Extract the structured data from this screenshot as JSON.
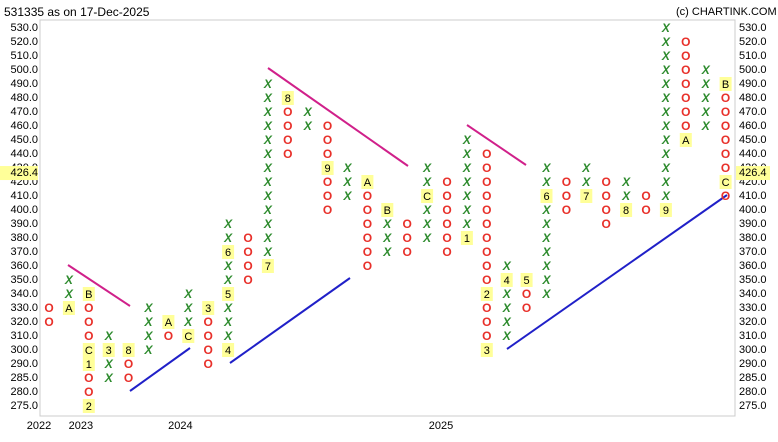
{
  "chart_data": {
    "type": "pnf",
    "title": "531335 as on 17-Dec-2025",
    "watermark": "(c) CHARTINK.COM",
    "last_price": 426.4,
    "x_color": "#2e8b2e",
    "o_color": "#e8302a",
    "marker_color": "#ffff99",
    "yticks": [
      {
        "value": 530,
        "label": "530.0"
      },
      {
        "value": 520,
        "label": "520.0"
      },
      {
        "value": 510,
        "label": "510.0"
      },
      {
        "value": 500,
        "label": "500.0"
      },
      {
        "value": 490,
        "label": "490.0"
      },
      {
        "value": 480,
        "label": "480.0"
      },
      {
        "value": 470,
        "label": "470.0"
      },
      {
        "value": 460,
        "label": "460.0"
      },
      {
        "value": 450,
        "label": "450.0"
      },
      {
        "value": 440,
        "label": "440.0"
      },
      {
        "value": 430,
        "label": "430.0"
      },
      {
        "value": 420,
        "label": "420.0"
      },
      {
        "value": 410,
        "label": "410.0"
      },
      {
        "value": 400,
        "label": "400.0"
      },
      {
        "value": 390,
        "label": "390.0"
      },
      {
        "value": 380,
        "label": "380.0"
      },
      {
        "value": 370,
        "label": "370.0"
      },
      {
        "value": 360,
        "label": "360.0"
      },
      {
        "value": 350,
        "label": "350.0"
      },
      {
        "value": 340,
        "label": "340.0"
      },
      {
        "value": 330,
        "label": "330.0"
      },
      {
        "value": 320,
        "label": "320.0"
      },
      {
        "value": 310,
        "label": "310.0"
      },
      {
        "value": 300,
        "label": "300.0"
      },
      {
        "value": 290,
        "label": "290.0"
      },
      {
        "value": 285,
        "label": "285.0"
      },
      {
        "value": 280,
        "label": "280.0"
      },
      {
        "value": 275,
        "label": "275.0"
      }
    ],
    "xticks": [
      {
        "value": -0.5,
        "label": "2022"
      },
      {
        "value": 1.6,
        "label": "2023"
      },
      {
        "value": 6.6,
        "label": "2024"
      },
      {
        "value": 19.7,
        "label": "2025"
      }
    ],
    "columns": [
      {
        "type": "O",
        "high": 330,
        "low": 320,
        "markers": []
      },
      {
        "type": "X",
        "high": 350,
        "low": 330,
        "markers": [
          {
            "level": 330,
            "label": "A"
          }
        ]
      },
      {
        "type": "O",
        "high": 340,
        "low": 275,
        "markers": [
          {
            "level": 340,
            "label": "B"
          },
          {
            "level": 300,
            "label": "C"
          },
          {
            "level": 290,
            "label": "1"
          },
          {
            "level": 275,
            "label": "2"
          }
        ]
      },
      {
        "type": "X",
        "high": 310,
        "low": 285,
        "markers": [
          {
            "level": 300,
            "label": "3"
          }
        ]
      },
      {
        "type": "O",
        "high": 300,
        "low": 285,
        "markers": [
          {
            "level": 300,
            "label": "8"
          }
        ]
      },
      {
        "type": "X",
        "high": 330,
        "low": 300,
        "markers": []
      },
      {
        "type": "O",
        "high": 320,
        "low": 310,
        "markers": [
          {
            "level": 320,
            "label": "A"
          }
        ]
      },
      {
        "type": "X",
        "high": 340,
        "low": 310,
        "markers": [
          {
            "level": 310,
            "label": "C"
          }
        ]
      },
      {
        "type": "O",
        "high": 330,
        "low": 290,
        "markers": [
          {
            "level": 330,
            "label": "3"
          }
        ]
      },
      {
        "type": "X",
        "high": 390,
        "low": 300,
        "markers": [
          {
            "level": 370,
            "label": "6"
          },
          {
            "level": 340,
            "label": "5"
          },
          {
            "level": 300,
            "label": "4"
          }
        ]
      },
      {
        "type": "O",
        "high": 380,
        "low": 350,
        "markers": []
      },
      {
        "type": "X",
        "high": 490,
        "low": 360,
        "markers": [
          {
            "level": 360,
            "label": "7"
          }
        ]
      },
      {
        "type": "O",
        "high": 480,
        "low": 440,
        "markers": [
          {
            "level": 480,
            "label": "8"
          }
        ]
      },
      {
        "type": "X",
        "high": 470,
        "low": 460,
        "markers": []
      },
      {
        "type": "O",
        "high": 460,
        "low": 400,
        "markers": [
          {
            "level": 430,
            "label": "9"
          }
        ]
      },
      {
        "type": "X",
        "high": 430,
        "low": 410,
        "markers": []
      },
      {
        "type": "O",
        "high": 420,
        "low": 360,
        "markers": [
          {
            "level": 420,
            "label": "A"
          }
        ]
      },
      {
        "type": "X",
        "high": 400,
        "low": 370,
        "markers": [
          {
            "level": 400,
            "label": "B"
          }
        ]
      },
      {
        "type": "O",
        "high": 390,
        "low": 370,
        "markers": []
      },
      {
        "type": "X",
        "high": 430,
        "low": 380,
        "markers": [
          {
            "level": 410,
            "label": "C"
          }
        ]
      },
      {
        "type": "O",
        "high": 420,
        "low": 370,
        "markers": []
      },
      {
        "type": "X",
        "high": 450,
        "low": 380,
        "markers": [
          {
            "level": 380,
            "label": "1"
          }
        ]
      },
      {
        "type": "O",
        "high": 440,
        "low": 300,
        "markers": [
          {
            "level": 340,
            "label": "2"
          },
          {
            "level": 300,
            "label": "3"
          }
        ]
      },
      {
        "type": "X",
        "high": 360,
        "low": 310,
        "markers": [
          {
            "level": 350,
            "label": "4"
          }
        ]
      },
      {
        "type": "O",
        "high": 350,
        "low": 330,
        "markers": [
          {
            "level": 350,
            "label": "5"
          }
        ]
      },
      {
        "type": "X",
        "high": 430,
        "low": 340,
        "markers": [
          {
            "level": 410,
            "label": "6"
          }
        ]
      },
      {
        "type": "O",
        "high": 420,
        "low": 400,
        "markers": []
      },
      {
        "type": "X",
        "high": 430,
        "low": 410,
        "markers": [
          {
            "level": 410,
            "label": "7"
          }
        ]
      },
      {
        "type": "O",
        "high": 420,
        "low": 390,
        "markers": []
      },
      {
        "type": "X",
        "high": 420,
        "low": 400,
        "markers": [
          {
            "level": 400,
            "label": "8"
          }
        ]
      },
      {
        "type": "O",
        "high": 410,
        "low": 400,
        "markers": []
      },
      {
        "type": "X",
        "high": 530,
        "low": 400,
        "markers": [
          {
            "level": 400,
            "label": "9"
          }
        ]
      },
      {
        "type": "O",
        "high": 520,
        "low": 450,
        "markers": [
          {
            "level": 450,
            "label": "A"
          }
        ]
      },
      {
        "type": "X",
        "high": 500,
        "low": 460,
        "markers": []
      },
      {
        "type": "O",
        "high": 490,
        "low": 410,
        "markers": [
          {
            "level": 490,
            "label": "B"
          },
          {
            "level": 420,
            "label": "C"
          }
        ]
      }
    ]
  }
}
